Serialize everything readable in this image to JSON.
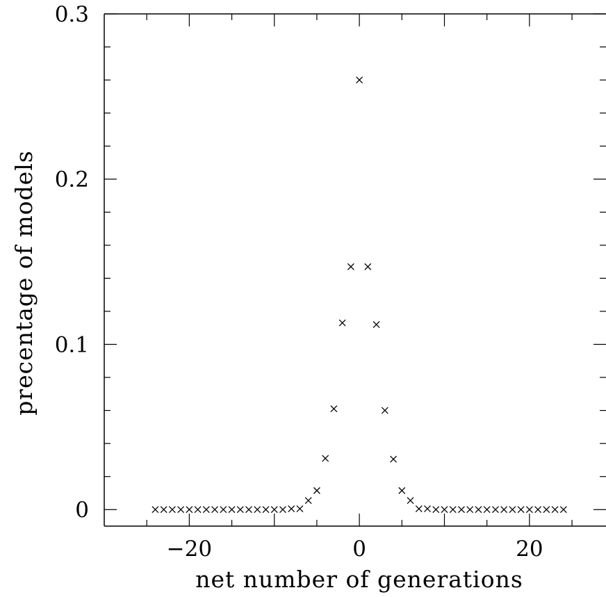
{
  "chart_data": {
    "type": "scatter",
    "marker": "x",
    "title": "",
    "xlabel": "net number of generations",
    "ylabel": "precentage of models",
    "xlim": [
      -30,
      29
    ],
    "ylim": [
      -0.01,
      0.3
    ],
    "xticks": [
      -20,
      0,
      20
    ],
    "xtick_labels": [
      "−20",
      "0",
      "20"
    ],
    "yticks": [
      0,
      0.1,
      0.2,
      0.3
    ],
    "ytick_labels": [
      "0",
      "0.1",
      "0.2",
      "0.3"
    ],
    "grid": false,
    "series": [
      {
        "x": [
          -24,
          -23,
          -22,
          -21,
          -20,
          -19,
          -18,
          -17,
          -16,
          -15,
          -14,
          -13,
          -12,
          -11,
          -10,
          -9,
          -8,
          -7,
          -6,
          -5,
          -4,
          -3,
          -2,
          -1,
          0,
          1,
          2,
          3,
          4,
          5,
          6,
          7,
          8,
          9,
          10,
          11,
          12,
          13,
          14,
          15,
          16,
          17,
          18,
          19,
          20,
          21,
          22,
          23,
          24
        ],
        "y": [
          0,
          0,
          0,
          0,
          0,
          0,
          0,
          0,
          0,
          0,
          0,
          0,
          0,
          0,
          0,
          0,
          0.0005,
          0.0005,
          0.0055,
          0.0115,
          0.031,
          0.061,
          0.113,
          0.147,
          0.26,
          0.147,
          0.112,
          0.06,
          0.0305,
          0.0115,
          0.0055,
          0.0005,
          0.0005,
          0,
          0,
          0,
          0,
          0,
          0,
          0,
          0,
          0,
          0,
          0,
          0,
          0,
          0,
          0,
          0
        ]
      }
    ]
  }
}
